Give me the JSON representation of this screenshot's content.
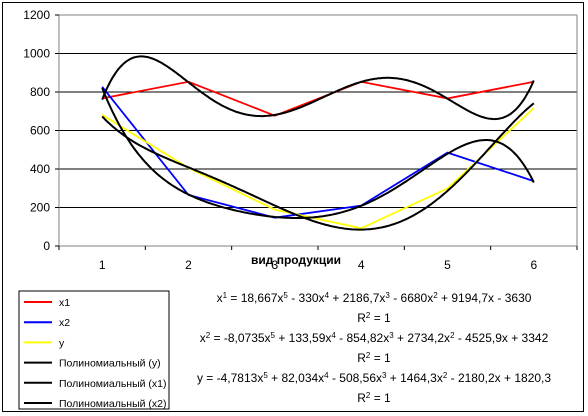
{
  "chart_data": {
    "type": "line",
    "x": [
      1,
      2,
      3,
      4,
      5,
      6
    ],
    "categories": [
      "1",
      "2",
      "3",
      "4",
      "5",
      "6"
    ],
    "xlabel": "вид продукции",
    "ylabel": "",
    "ylim": [
      0,
      1200
    ],
    "yticks": [
      "0",
      "200",
      "400",
      "600",
      "800",
      "1000",
      "1200"
    ],
    "grid": "horizontal",
    "legend_position": "bottom-left",
    "series": [
      {
        "name": "x1",
        "color": "#ff0000",
        "values": [
          767,
          853,
          677,
          853,
          767,
          853
        ]
      },
      {
        "name": "x2",
        "color": "#0000ff",
        "values": [
          827,
          265,
          147,
          210,
          485,
          337
        ]
      },
      {
        "name": "y",
        "color": "#ffff00",
        "values": [
          681,
          405,
          189,
          92,
          299,
          717
        ]
      }
    ],
    "trendlines": [
      {
        "name": "Полиномиальный (y)",
        "color": "#000000",
        "coef": [
          1820.3,
          -2180.2,
          1464.3,
          -508.56,
          82.034,
          -4.7813
        ]
      },
      {
        "name": "Полиномиальный (x1)",
        "color": "#000000",
        "coef": [
          -3630,
          9194.7,
          -6680,
          2186.7,
          -330,
          18.667
        ]
      },
      {
        "name": "Полиномиальный (x2)",
        "color": "#000000",
        "coef": [
          3342,
          -4525.9,
          2734.2,
          -854.82,
          133.59,
          -8.0735
        ]
      }
    ],
    "equations": [
      {
        "eq": "x1 = 18,667x5 - 330x4 + 2186,7x3 - 6680x2 + 9194,7x - 3630",
        "r2": "R2 = 1"
      },
      {
        "eq": "x2 = -8,0735x5 + 133,59x4 - 854,82x3 + 2734,2x2 - 4525,9x + 3342",
        "r2": "R2 = 1"
      },
      {
        "eq": "y = -4,7813x5 + 82,034x4 - 508,56x3 + 1464,3x2 - 2180,2x + 1820,3",
        "r2": "R2 = 1"
      }
    ]
  }
}
